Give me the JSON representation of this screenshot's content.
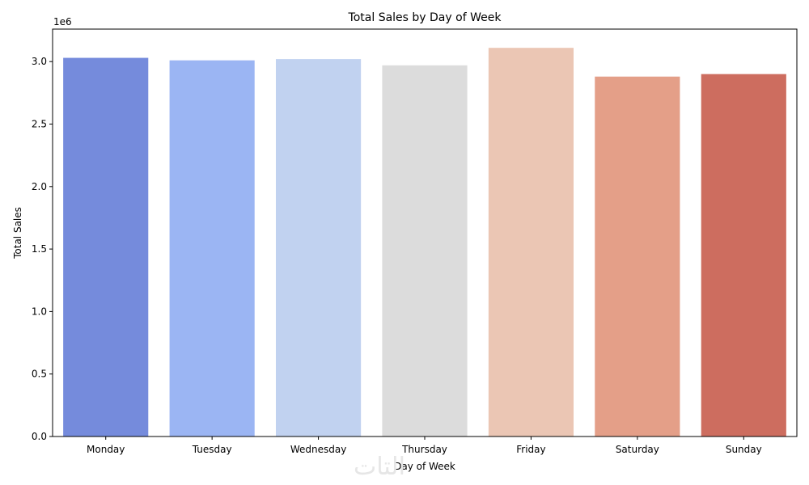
{
  "chart_data": {
    "type": "bar",
    "title": "Total Sales by Day of Week",
    "xlabel": "Day of Week",
    "ylabel": "Total Sales",
    "y_offset_label": "1e6",
    "categories": [
      "Monday",
      "Tuesday",
      "Wednesday",
      "Thursday",
      "Friday",
      "Saturday",
      "Sunday"
    ],
    "values": [
      3030000,
      3010000,
      3020000,
      2970000,
      3110000,
      2880000,
      2900000
    ],
    "colors": [
      "#758BDC",
      "#9BB5F3",
      "#C1D2F0",
      "#DCDCDC",
      "#EBC6B4",
      "#E49F88",
      "#CD6D5F"
    ],
    "ylim": [
      0,
      3260000
    ],
    "yticks": [
      0,
      500000,
      1000000,
      1500000,
      2000000,
      2500000,
      3000000
    ],
    "ytick_labels": [
      "0.0",
      "0.5",
      "1.0",
      "1.5",
      "2.0",
      "2.5",
      "3.0"
    ],
    "grid": false,
    "legend": "none"
  },
  "watermark": "التات"
}
